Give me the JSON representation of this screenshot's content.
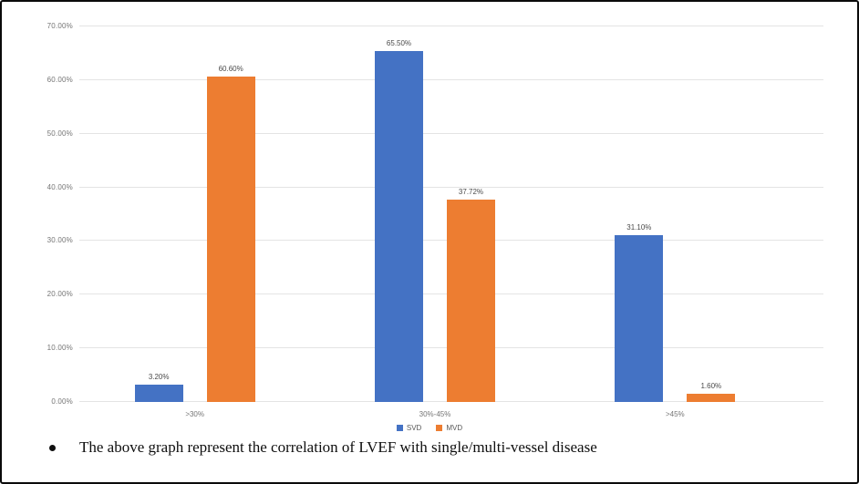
{
  "frame": {
    "background_color": "#ffffff",
    "border_color": "#0a0a0a"
  },
  "chart_data": {
    "type": "bar",
    "title": "",
    "categories": [
      ">30%",
      "30%-45%",
      ">45%"
    ],
    "series": [
      {
        "name": "SVD",
        "color": "#4472C4",
        "values": [
          3.2,
          65.5,
          31.1
        ],
        "labels": [
          "3.20%",
          "65.50%",
          "31.10%"
        ]
      },
      {
        "name": "MVD",
        "color": "#ED7D31",
        "values": [
          60.6,
          37.72,
          1.6
        ],
        "labels": [
          "60.60%",
          "37.72%",
          "1.60%"
        ]
      }
    ],
    "y_axis": {
      "min": 0,
      "max": 70,
      "step": 10,
      "tick_labels": [
        "0.00%",
        "10.00%",
        "20.00%",
        "30.00%",
        "40.00%",
        "50.00%",
        "60.00%",
        "70.00%"
      ]
    },
    "xlabel": "",
    "ylabel": "",
    "grid": true,
    "legend_position": "bottom",
    "gridline_color": "#e4e4e4"
  },
  "caption": {
    "text": "The above graph represent the correlation of LVEF with single/multi-vessel disease"
  }
}
